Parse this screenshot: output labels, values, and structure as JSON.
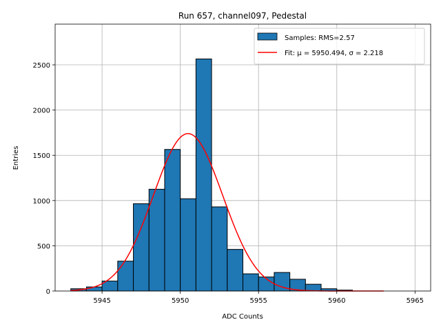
{
  "chart_data": {
    "type": "bar",
    "title": "Run 657, channel097, Pedestal",
    "xlabel": "ADC Counts",
    "ylabel": "Entries",
    "xlim": [
      5942.0,
      5966.0
    ],
    "ylim": [
      0,
      2950
    ],
    "xticks": [
      5945,
      5950,
      5955,
      5960,
      5965
    ],
    "yticks": [
      0,
      500,
      1000,
      1500,
      2000,
      2500
    ],
    "grid": true,
    "legend_position": "top-right",
    "bin_width": 1,
    "bins": [
      {
        "x": 5943,
        "value": 25
      },
      {
        "x": 5944,
        "value": 45
      },
      {
        "x": 5945,
        "value": 110
      },
      {
        "x": 5946,
        "value": 330
      },
      {
        "x": 5947,
        "value": 965
      },
      {
        "x": 5948,
        "value": 1125
      },
      {
        "x": 5949,
        "value": 1565
      },
      {
        "x": 5950,
        "value": 1020
      },
      {
        "x": 5951,
        "value": 2565
      },
      {
        "x": 5952,
        "value": 930
      },
      {
        "x": 5953,
        "value": 460
      },
      {
        "x": 5954,
        "value": 190
      },
      {
        "x": 5955,
        "value": 155
      },
      {
        "x": 5956,
        "value": 205
      },
      {
        "x": 5957,
        "value": 130
      },
      {
        "x": 5958,
        "value": 75
      },
      {
        "x": 5959,
        "value": 25
      },
      {
        "x": 5960,
        "value": 10
      }
    ],
    "fit": {
      "mu": 5950.494,
      "sigma": 2.218,
      "amplitude": 1740,
      "x_range": [
        5943,
        5963
      ]
    },
    "series": [
      {
        "name": "Samples: RMS=2.57",
        "color": "#1f77b4",
        "kind": "histogram"
      },
      {
        "name": "Fit: μ = 5950.494, σ = 2.218",
        "color": "#ff0000",
        "kind": "line"
      }
    ]
  }
}
